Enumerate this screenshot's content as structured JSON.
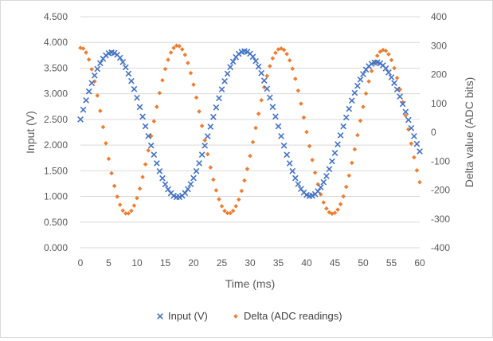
{
  "chart_data": {
    "type": "scatter",
    "xlabel": "Time (ms)",
    "ylabel": "Input (V)",
    "y2label": "Delta value (ADC bits)",
    "xlim": [
      0,
      60
    ],
    "ylim": [
      0.0,
      4.5
    ],
    "y2lim": [
      -400,
      400
    ],
    "x_ticks": [
      "0",
      "5",
      "10",
      "15",
      "20",
      "25",
      "30",
      "35",
      "40",
      "45",
      "50",
      "55",
      "60"
    ],
    "y_ticks": [
      "0.000",
      "0.500",
      "1.000",
      "1.500",
      "2.000",
      "2.500",
      "3.000",
      "3.500",
      "4.000",
      "4.500"
    ],
    "y2_ticks": [
      "-400",
      "-300",
      "-200",
      "-100",
      "0",
      "100",
      "200",
      "300",
      "400"
    ],
    "grid": "horizontal",
    "legend_position": "bottom",
    "series": [
      {
        "name": "Input (V)",
        "axis": "left",
        "marker": "x",
        "color": "#4472C4",
        "x": [
          0,
          0.5,
          1,
          1.5,
          2,
          2.5,
          3,
          3.5,
          4,
          4.5,
          5,
          5.5,
          6,
          6.5,
          7,
          7.5,
          8,
          8.5,
          9,
          9.5,
          10,
          10.5,
          11,
          11.5,
          12,
          12.5,
          13,
          13.5,
          14,
          14.5,
          15,
          15.5,
          16,
          16.5,
          17,
          17.5,
          18,
          18.5,
          19,
          19.5,
          20,
          20.5,
          21,
          21.5,
          22,
          22.5,
          23,
          23.5,
          24,
          24.5,
          25,
          25.5,
          26,
          26.5,
          27,
          27.5,
          28,
          28.5,
          29,
          29.5,
          30,
          30.5,
          31,
          31.5,
          32,
          32.5,
          33,
          33.5,
          34,
          34.5,
          35,
          35.5,
          36,
          36.5,
          37,
          37.5,
          38,
          38.5,
          39,
          39.5,
          40,
          40.5,
          41,
          41.5,
          42,
          42.5,
          43,
          43.5,
          44,
          44.5,
          45,
          45.5,
          46,
          46.5,
          47,
          47.5,
          48,
          48.5,
          49,
          49.5,
          50,
          50.5,
          51,
          51.5,
          52,
          52.5,
          53,
          53.5,
          54,
          54.5,
          55,
          55.5,
          56,
          56.5,
          57,
          57.5,
          58,
          58.5,
          59,
          59.5,
          60
        ],
        "values": [
          2.5,
          2.689,
          2.872,
          3.046,
          3.208,
          3.355,
          3.484,
          3.594,
          3.682,
          3.747,
          3.788,
          3.803,
          3.794,
          3.759,
          3.7,
          3.618,
          3.514,
          3.39,
          3.248,
          3.091,
          2.921,
          2.741,
          2.555,
          2.366,
          2.177,
          1.992,
          1.814,
          1.646,
          1.492,
          1.354,
          1.235,
          1.138,
          1.063,
          1.013,
          0.987,
          0.988,
          1.014,
          1.066,
          1.142,
          1.239,
          1.358,
          1.494,
          1.647,
          1.813,
          1.989,
          2.172,
          2.359,
          2.548,
          2.733,
          2.914,
          3.085,
          3.245,
          3.39,
          3.518,
          3.626,
          3.713,
          3.776,
          3.815,
          3.829,
          3.818,
          3.781,
          3.72,
          3.636,
          3.529,
          3.402,
          3.257,
          3.097,
          2.925,
          2.743,
          2.556,
          2.365,
          2.175,
          1.99,
          1.812,
          1.645,
          1.493,
          1.357,
          1.241,
          1.147,
          1.076,
          1.03,
          1.009,
          1.014,
          1.045,
          1.1,
          1.178,
          1.278,
          1.397,
          1.533,
          1.684,
          1.846,
          2.016,
          2.19,
          2.365,
          2.538,
          2.706,
          2.867,
          3.017,
          3.154,
          3.277,
          3.383,
          3.47,
          3.537,
          3.583,
          3.608,
          3.611,
          3.593,
          3.554,
          3.494,
          3.416,
          3.32,
          3.209,
          3.083,
          2.946,
          2.8,
          2.647,
          2.49,
          2.332,
          2.175,
          2.023,
          1.877
        ]
      },
      {
        "name": "Delta (ADC readings)",
        "axis": "right",
        "marker": "diamond",
        "color": "#ED7D31",
        "x": [
          0,
          0.5,
          1,
          1.5,
          2,
          2.5,
          3,
          3.5,
          4,
          4.5,
          5,
          5.5,
          6,
          6.5,
          7,
          7.5,
          8,
          8.5,
          9,
          9.5,
          10,
          10.5,
          11,
          11.5,
          12,
          12.5,
          13,
          13.5,
          14,
          14.5,
          15,
          15.5,
          16,
          16.5,
          17,
          17.5,
          18,
          18.5,
          19,
          19.5,
          20,
          20.5,
          21,
          21.5,
          22,
          22.5,
          23,
          23.5,
          24,
          24.5,
          25,
          25.5,
          26,
          26.5,
          27,
          27.5,
          28,
          28.5,
          29,
          29.5,
          30,
          30.5,
          31,
          31.5,
          32,
          32.5,
          33,
          33.5,
          34,
          34.5,
          35,
          35.5,
          36,
          36.5,
          37,
          37.5,
          38,
          38.5,
          39,
          39.5,
          40,
          40.5,
          41,
          41.5,
          42,
          42.5,
          43,
          43.5,
          44,
          44.5,
          45,
          45.5,
          46,
          46.5,
          47,
          47.5,
          48,
          48.5,
          49,
          49.5,
          50,
          50.5,
          51,
          51.5,
          52,
          52.5,
          53,
          53.5,
          54,
          54.5,
          55,
          55.5,
          56,
          56.5,
          57,
          57.5,
          58,
          58.5,
          59,
          59.5,
          60
        ],
        "values": [
          292,
          290,
          276,
          252,
          218,
          176,
          127,
          74,
          18,
          -38,
          -92,
          -142,
          -186,
          -223,
          -251,
          -271,
          -281,
          -281,
          -272,
          -254,
          -228,
          -195,
          -155,
          -111,
          -63,
          -13,
          38,
          88,
          136,
          180,
          219,
          251,
          276,
          292,
          300,
          298,
          287,
          268,
          240,
          205,
          165,
          120,
          72,
          22,
          -28,
          -76,
          -122,
          -164,
          -201,
          -232,
          -256,
          -272,
          -280,
          -280,
          -272,
          -256,
          -233,
          -203,
          -167,
          -127,
          -82,
          -34,
          15,
          64,
          111,
          156,
          195,
          229,
          256,
          275,
          287,
          290,
          285,
          271,
          249,
          220,
          185,
          144,
          99,
          51,
          1,
          -48,
          -96,
          -140,
          -180,
          -215,
          -243,
          -264,
          -277,
          -282,
          -279,
          -268,
          -249,
          -222,
          -189,
          -150,
          -106,
          -59,
          -10,
          40,
          88,
          134,
          176,
          212,
          242,
          265,
          279,
          285,
          282,
          270,
          250,
          222,
          188,
          148,
          104,
          58,
          10,
          -39,
          -87,
          -132,
          -173
        ]
      }
    ]
  }
}
